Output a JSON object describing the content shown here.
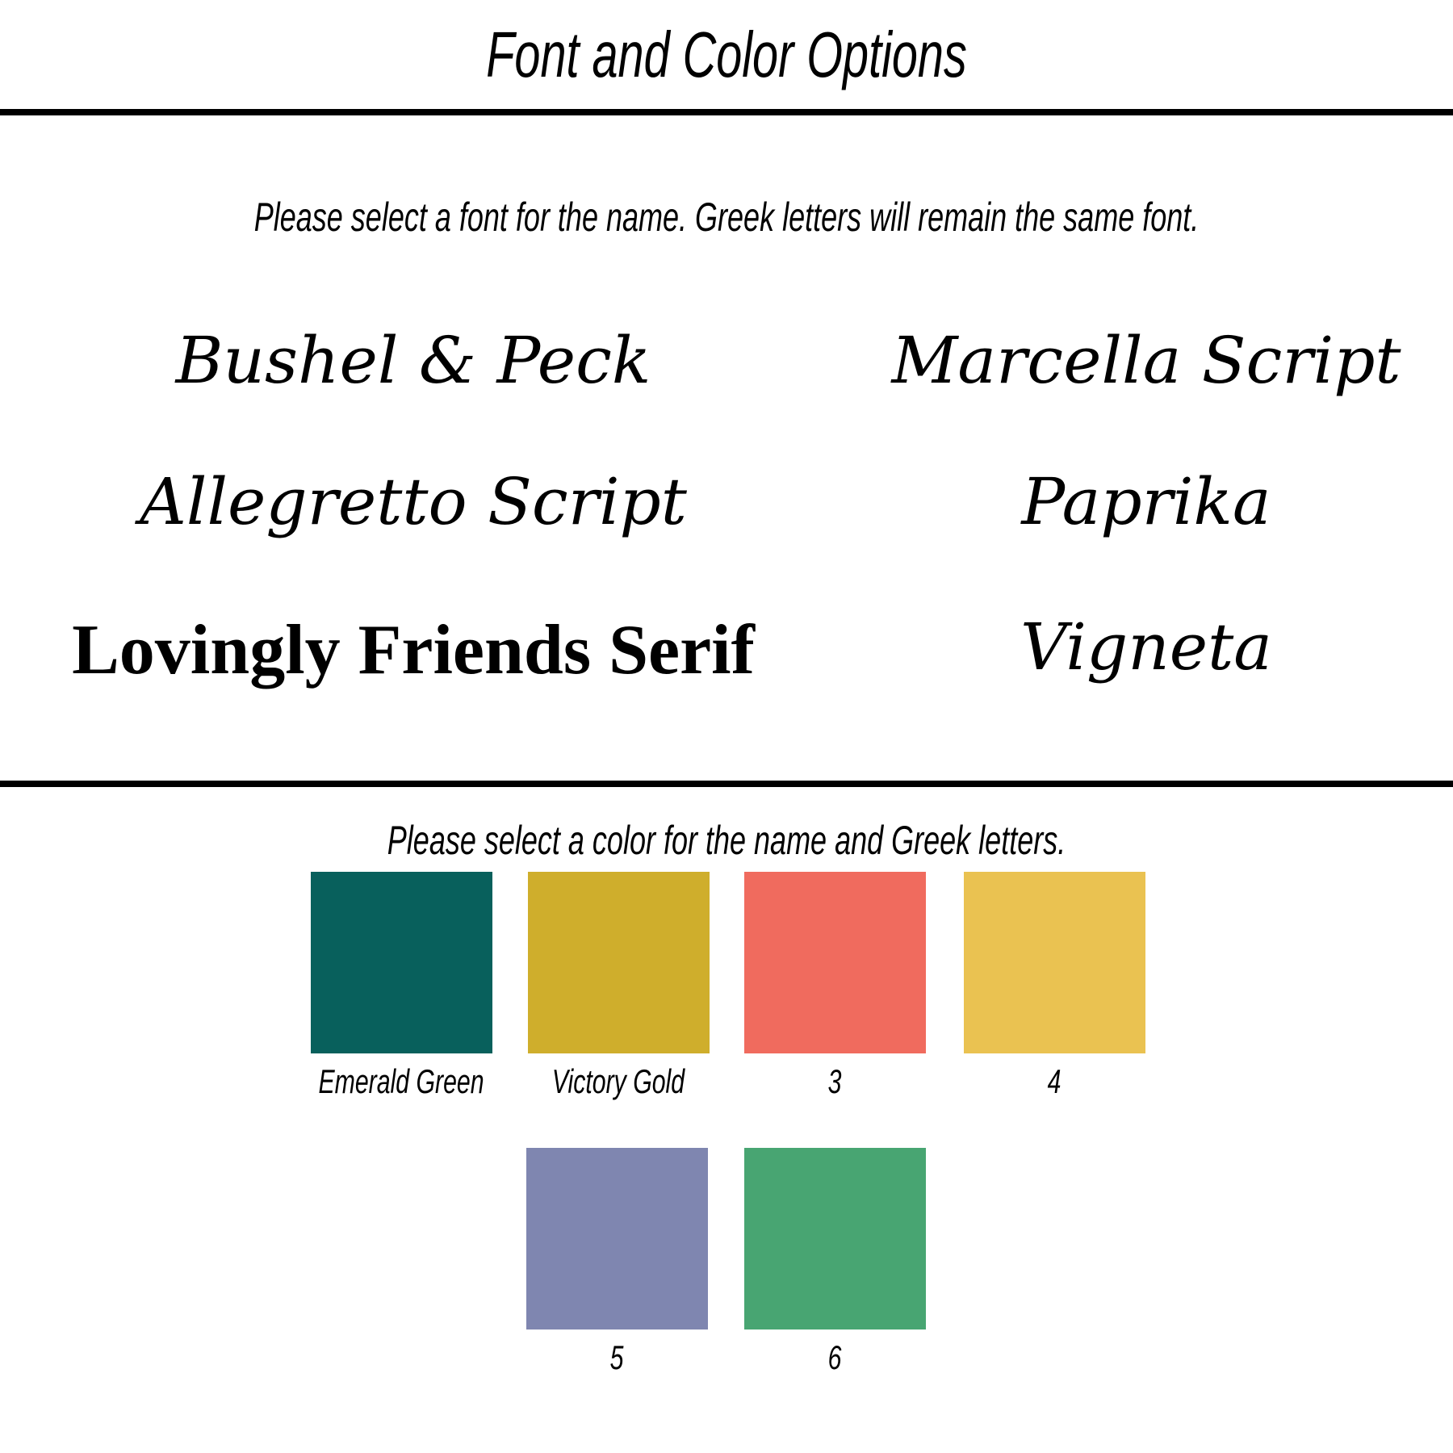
{
  "header": {
    "title": "Font and Color Options"
  },
  "fonts_section": {
    "prompt": "Please select a font for the name.  Greek letters will remain the same font.",
    "options": [
      "Bushel & Peck",
      "Marcella Script",
      "Allegretto Script",
      "Paprika",
      "Lovingly Friends Serif",
      "Vigneta"
    ]
  },
  "colors_section": {
    "prompt": "Please select a color for the name and Greek letters.",
    "swatches": [
      {
        "label": "Emerald Green",
        "color": "#08605C"
      },
      {
        "label": "Victory Gold",
        "color": "#CFAE2C"
      },
      {
        "label": "3",
        "color": "#F06B5E"
      },
      {
        "label": "4",
        "color": "#EAC251"
      },
      {
        "label": "5",
        "color": "#7F86B0"
      },
      {
        "label": "6",
        "color": "#48A572"
      }
    ]
  }
}
